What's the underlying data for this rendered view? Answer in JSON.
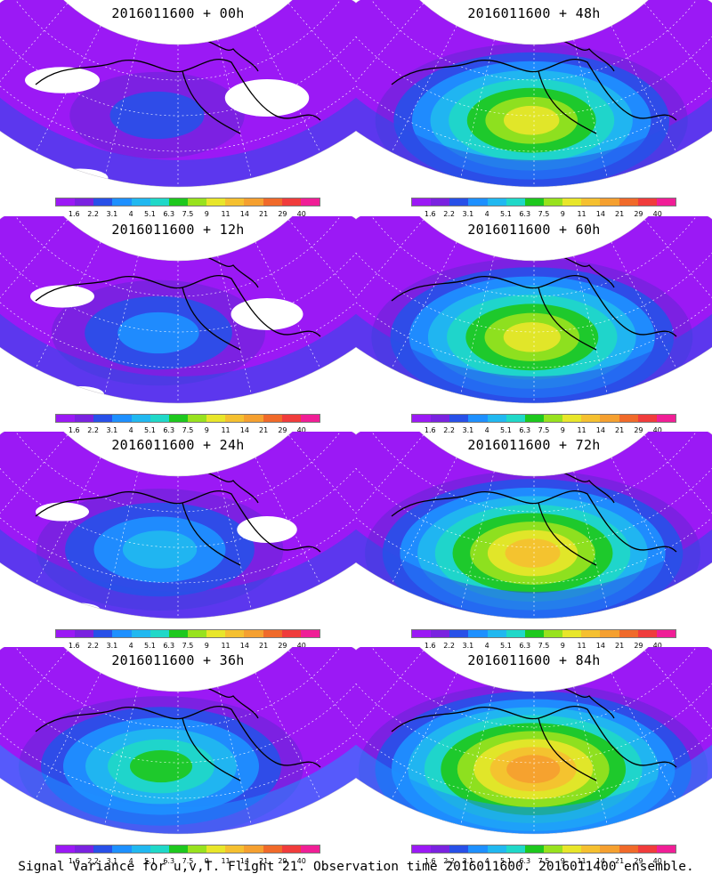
{
  "panels": [
    {
      "title": "2016011600 + 00h",
      "lead": "00h",
      "level": 0.15
    },
    {
      "title": "2016011600 + 48h",
      "lead": "48h",
      "level": 0.72
    },
    {
      "title": "2016011600 + 12h",
      "lead": "12h",
      "level": 0.3
    },
    {
      "title": "2016011600 + 60h",
      "lead": "60h",
      "level": 0.78
    },
    {
      "title": "2016011600 + 24h",
      "lead": "24h",
      "level": 0.45
    },
    {
      "title": "2016011600 + 72h",
      "lead": "72h",
      "level": 0.85
    },
    {
      "title": "2016011600 + 36h",
      "lead": "36h",
      "level": 0.6
    },
    {
      "title": "2016011600 + 84h",
      "lead": "84h",
      "level": 0.92
    }
  ],
  "colorbar": {
    "labels": [
      "1.6",
      "2.2",
      "3.1",
      "4",
      "5.1",
      "6.3",
      "7.5",
      "9",
      "11",
      "14",
      "21",
      "29",
      "40"
    ],
    "colors": [
      "#9b19f5",
      "#7a22e0",
      "#2850e8",
      "#1e90ff",
      "#21b8f0",
      "#20d8c8",
      "#1ec81e",
      "#98e21e",
      "#e8e62a",
      "#f5c030",
      "#f5a030",
      "#f06a2a",
      "#f03c3c",
      "#f01e96"
    ]
  },
  "caption": "Signal Variance for u,v,T. Flight 21. Observation time 2016011600. 2016011400 ensemble."
}
